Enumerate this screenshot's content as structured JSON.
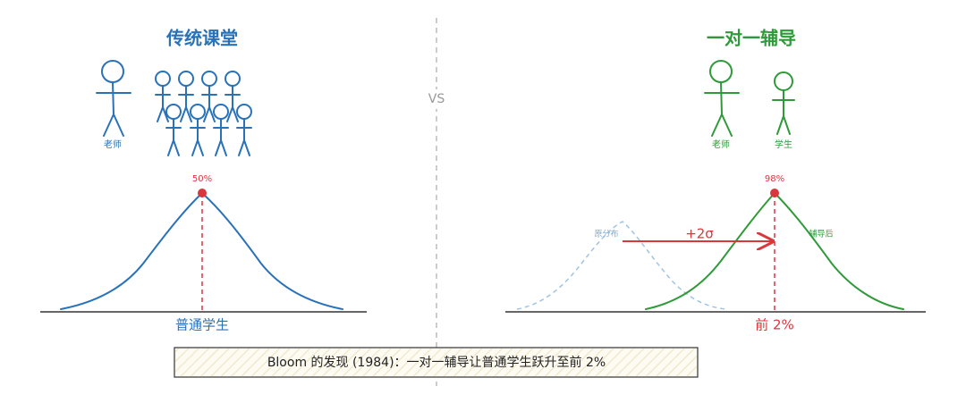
{
  "left": {
    "title": "传统课堂",
    "teacher_label": "老师",
    "peak_label": "50%",
    "axis_label": "普通学生"
  },
  "divider": "VS",
  "right": {
    "title": "一对一辅导",
    "teacher_label": "老师",
    "student_label": "学生",
    "before_label": "原分布",
    "after_label": "辅导后",
    "peak_label": "98%",
    "shift_label": "+2σ",
    "axis_label": "前 2%"
  },
  "caption": "Bloom 的发现 (1984)：一对一辅导让普通学生跃升至前 2%"
}
